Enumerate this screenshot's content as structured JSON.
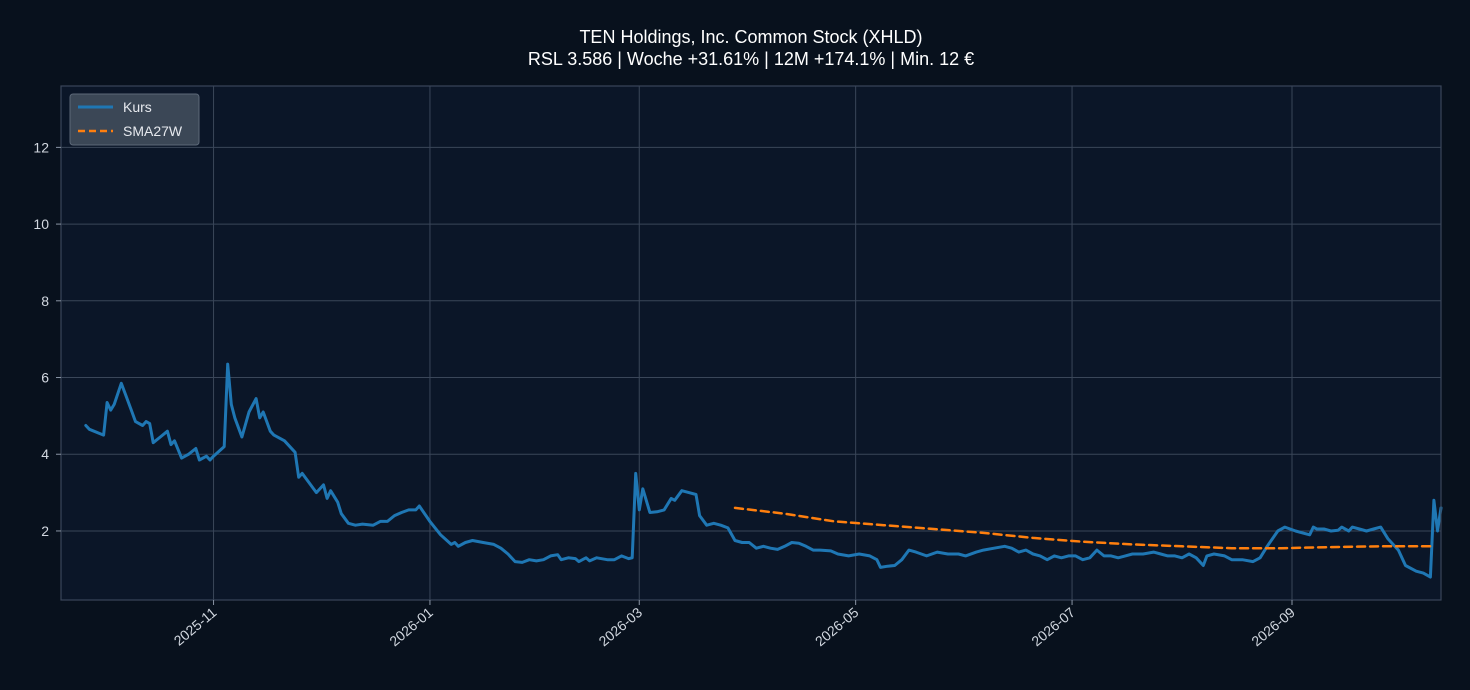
{
  "chart_data": {
    "type": "line",
    "title": "TEN Holdings, Inc. Common Stock (XHLD)",
    "subtitle": "RSL 3.586 | Woche +31.61% | 12M +174.1% | Min. 12 €",
    "xlabel": "",
    "ylabel": "",
    "xlim": [
      "2025-09-19",
      "2026-10-13"
    ],
    "ylim": [
      0.2,
      13.6
    ],
    "x_ticks": [
      "2025-11-01",
      "2026-01-01",
      "2026-03-01",
      "2026-05-01",
      "2026-07-01",
      "2026-09-01"
    ],
    "x_tick_labels": [
      "2025-11",
      "2026-01",
      "2026-03",
      "2026-05",
      "2026-07",
      "2026-09"
    ],
    "y_ticks": [
      2,
      4,
      6,
      8,
      10,
      12
    ],
    "y_tick_labels": [
      "2",
      "4",
      "6",
      "8",
      "10",
      "12"
    ],
    "grid": true,
    "legend_position": "top-left",
    "legend": [
      "Kurs",
      "SMA27W"
    ],
    "colors": {
      "Kurs": "#1f77b4",
      "SMA27W": "#ff7f0e",
      "background": "#08111d",
      "axes": "#0b1628",
      "grid": "#3a4659"
    },
    "series": [
      {
        "name": "Kurs",
        "style": "solid",
        "points": [
          [
            "2025-09-26",
            4.75
          ],
          [
            "2025-09-27",
            4.65
          ],
          [
            "2025-10-01",
            4.5
          ],
          [
            "2025-10-02",
            5.35
          ],
          [
            "2025-10-03",
            5.15
          ],
          [
            "2025-10-04",
            5.3
          ],
          [
            "2025-10-06",
            5.85
          ],
          [
            "2025-10-07",
            5.6
          ],
          [
            "2025-10-09",
            5.1
          ],
          [
            "2025-10-10",
            4.85
          ],
          [
            "2025-10-12",
            4.75
          ],
          [
            "2025-10-13",
            4.85
          ],
          [
            "2025-10-14",
            4.8
          ],
          [
            "2025-10-15",
            4.3
          ],
          [
            "2025-10-17",
            4.45
          ],
          [
            "2025-10-19",
            4.6
          ],
          [
            "2025-10-20",
            4.25
          ],
          [
            "2025-10-21",
            4.35
          ],
          [
            "2025-10-23",
            3.9
          ],
          [
            "2025-10-25",
            4.0
          ],
          [
            "2025-10-27",
            4.15
          ],
          [
            "2025-10-28",
            3.85
          ],
          [
            "2025-10-30",
            3.95
          ],
          [
            "2025-10-31",
            3.85
          ],
          [
            "2025-11-01",
            3.95
          ],
          [
            "2025-11-04",
            4.2
          ],
          [
            "2025-11-05",
            6.35
          ],
          [
            "2025-11-06",
            5.3
          ],
          [
            "2025-11-07",
            4.95
          ],
          [
            "2025-11-09",
            4.45
          ],
          [
            "2025-11-11",
            5.1
          ],
          [
            "2025-11-13",
            5.45
          ],
          [
            "2025-11-14",
            4.95
          ],
          [
            "2025-11-15",
            5.1
          ],
          [
            "2025-11-17",
            4.6
          ],
          [
            "2025-11-18",
            4.5
          ],
          [
            "2025-11-21",
            4.35
          ],
          [
            "2025-11-24",
            4.05
          ],
          [
            "2025-11-25",
            3.4
          ],
          [
            "2025-11-26",
            3.5
          ],
          [
            "2025-11-28",
            3.25
          ],
          [
            "2025-11-30",
            3.0
          ],
          [
            "2025-12-02",
            3.2
          ],
          [
            "2025-12-03",
            2.85
          ],
          [
            "2025-12-04",
            3.05
          ],
          [
            "2025-12-06",
            2.75
          ],
          [
            "2025-12-07",
            2.45
          ],
          [
            "2025-12-09",
            2.2
          ],
          [
            "2025-12-11",
            2.15
          ],
          [
            "2025-12-13",
            2.18
          ],
          [
            "2025-12-16",
            2.15
          ],
          [
            "2025-12-18",
            2.25
          ],
          [
            "2025-12-20",
            2.25
          ],
          [
            "2025-12-22",
            2.4
          ],
          [
            "2025-12-24",
            2.48
          ],
          [
            "2025-12-26",
            2.55
          ],
          [
            "2025-12-28",
            2.55
          ],
          [
            "2025-12-29",
            2.65
          ],
          [
            "2026-01-01",
            2.25
          ],
          [
            "2026-01-04",
            1.9
          ],
          [
            "2026-01-07",
            1.65
          ],
          [
            "2026-01-08",
            1.7
          ],
          [
            "2026-01-09",
            1.6
          ],
          [
            "2026-01-11",
            1.7
          ],
          [
            "2026-01-13",
            1.75
          ],
          [
            "2026-01-16",
            1.7
          ],
          [
            "2026-01-19",
            1.65
          ],
          [
            "2026-01-21",
            1.55
          ],
          [
            "2026-01-23",
            1.4
          ],
          [
            "2026-01-25",
            1.2
          ],
          [
            "2026-01-27",
            1.18
          ],
          [
            "2026-01-29",
            1.25
          ],
          [
            "2026-01-31",
            1.22
          ],
          [
            "2026-02-02",
            1.25
          ],
          [
            "2026-02-04",
            1.35
          ],
          [
            "2026-02-06",
            1.38
          ],
          [
            "2026-02-07",
            1.25
          ],
          [
            "2026-02-09",
            1.3
          ],
          [
            "2026-02-11",
            1.28
          ],
          [
            "2026-02-12",
            1.2
          ],
          [
            "2026-02-14",
            1.3
          ],
          [
            "2026-02-15",
            1.22
          ],
          [
            "2026-02-17",
            1.3
          ],
          [
            "2026-02-20",
            1.25
          ],
          [
            "2026-02-22",
            1.25
          ],
          [
            "2026-02-24",
            1.35
          ],
          [
            "2026-02-26",
            1.28
          ],
          [
            "2026-02-27",
            1.3
          ],
          [
            "2026-02-28",
            3.5
          ],
          [
            "2026-03-01",
            2.55
          ],
          [
            "2026-03-02",
            3.1
          ],
          [
            "2026-03-04",
            2.48
          ],
          [
            "2026-03-06",
            2.5
          ],
          [
            "2026-03-08",
            2.55
          ],
          [
            "2026-03-10",
            2.85
          ],
          [
            "2026-03-11",
            2.8
          ],
          [
            "2026-03-13",
            3.05
          ],
          [
            "2026-03-15",
            3.0
          ],
          [
            "2026-03-17",
            2.95
          ],
          [
            "2026-03-18",
            2.4
          ],
          [
            "2026-03-20",
            2.15
          ],
          [
            "2026-03-22",
            2.2
          ],
          [
            "2026-03-24",
            2.15
          ],
          [
            "2026-03-26",
            2.08
          ],
          [
            "2026-03-28",
            1.75
          ],
          [
            "2026-03-30",
            1.7
          ],
          [
            "2026-04-01",
            1.7
          ],
          [
            "2026-04-03",
            1.55
          ],
          [
            "2026-04-05",
            1.6
          ],
          [
            "2026-04-07",
            1.55
          ],
          [
            "2026-04-09",
            1.52
          ],
          [
            "2026-04-11",
            1.6
          ],
          [
            "2026-04-13",
            1.7
          ],
          [
            "2026-04-15",
            1.68
          ],
          [
            "2026-04-17",
            1.6
          ],
          [
            "2026-04-19",
            1.5
          ],
          [
            "2026-04-21",
            1.5
          ],
          [
            "2026-04-24",
            1.48
          ],
          [
            "2026-04-26",
            1.4
          ],
          [
            "2026-04-29",
            1.35
          ],
          [
            "2026-05-02",
            1.4
          ],
          [
            "2026-05-05",
            1.35
          ],
          [
            "2026-05-07",
            1.25
          ],
          [
            "2026-05-08",
            1.05
          ],
          [
            "2026-05-10",
            1.08
          ],
          [
            "2026-05-12",
            1.1
          ],
          [
            "2026-05-14",
            1.25
          ],
          [
            "2026-05-16",
            1.5
          ],
          [
            "2026-05-18",
            1.45
          ],
          [
            "2026-05-21",
            1.35
          ],
          [
            "2026-05-24",
            1.45
          ],
          [
            "2026-05-27",
            1.4
          ],
          [
            "2026-05-30",
            1.4
          ],
          [
            "2026-06-01",
            1.35
          ],
          [
            "2026-06-04",
            1.45
          ],
          [
            "2026-06-06",
            1.5
          ],
          [
            "2026-06-09",
            1.55
          ],
          [
            "2026-06-12",
            1.6
          ],
          [
            "2026-06-14",
            1.55
          ],
          [
            "2026-06-16",
            1.45
          ],
          [
            "2026-06-18",
            1.5
          ],
          [
            "2026-06-20",
            1.4
          ],
          [
            "2026-06-22",
            1.35
          ],
          [
            "2026-06-24",
            1.25
          ],
          [
            "2026-06-26",
            1.35
          ],
          [
            "2026-06-28",
            1.3
          ],
          [
            "2026-06-30",
            1.35
          ],
          [
            "2026-07-02",
            1.35
          ],
          [
            "2026-07-04",
            1.25
          ],
          [
            "2026-07-06",
            1.3
          ],
          [
            "2026-07-08",
            1.5
          ],
          [
            "2026-07-10",
            1.35
          ],
          [
            "2026-07-12",
            1.35
          ],
          [
            "2026-07-14",
            1.3
          ],
          [
            "2026-07-16",
            1.35
          ],
          [
            "2026-07-18",
            1.4
          ],
          [
            "2026-07-21",
            1.4
          ],
          [
            "2026-07-24",
            1.45
          ],
          [
            "2026-07-26",
            1.4
          ],
          [
            "2026-07-28",
            1.35
          ],
          [
            "2026-07-30",
            1.35
          ],
          [
            "2026-08-01",
            1.3
          ],
          [
            "2026-08-03",
            1.4
          ],
          [
            "2026-08-05",
            1.3
          ],
          [
            "2026-08-07",
            1.1
          ],
          [
            "2026-08-08",
            1.35
          ],
          [
            "2026-08-10",
            1.4
          ],
          [
            "2026-08-13",
            1.35
          ],
          [
            "2026-08-15",
            1.25
          ],
          [
            "2026-08-18",
            1.25
          ],
          [
            "2026-08-21",
            1.2
          ],
          [
            "2026-08-23",
            1.3
          ],
          [
            "2026-08-25",
            1.6
          ],
          [
            "2026-08-28",
            2.0
          ],
          [
            "2026-08-30",
            2.1
          ],
          [
            "2026-09-02",
            2.0
          ],
          [
            "2026-09-04",
            1.95
          ],
          [
            "2026-09-06",
            1.9
          ],
          [
            "2026-09-07",
            2.1
          ],
          [
            "2026-09-08",
            2.05
          ],
          [
            "2026-09-10",
            2.05
          ],
          [
            "2026-09-12",
            2.0
          ],
          [
            "2026-09-14",
            2.02
          ],
          [
            "2026-09-15",
            2.1
          ],
          [
            "2026-09-17",
            2.0
          ],
          [
            "2026-09-18",
            2.1
          ],
          [
            "2026-09-20",
            2.05
          ],
          [
            "2026-09-22",
            2.0
          ],
          [
            "2026-09-24",
            2.05
          ],
          [
            "2026-09-26",
            2.1
          ],
          [
            "2026-09-28",
            1.8
          ],
          [
            "2026-10-01",
            1.5
          ],
          [
            "2026-10-03",
            1.1
          ],
          [
            "2026-10-06",
            0.95
          ],
          [
            "2026-10-08",
            0.9
          ],
          [
            "2026-10-10",
            0.8
          ],
          [
            "2026-10-11",
            2.8
          ],
          [
            "2026-10-12",
            2.0
          ],
          [
            "2026-10-13",
            2.6
          ]
        ]
      },
      {
        "name": "SMA27W",
        "style": "dashed",
        "points": [
          [
            "2026-03-28",
            2.6
          ],
          [
            "2026-04-11",
            2.45
          ],
          [
            "2026-04-25",
            2.25
          ],
          [
            "2026-05-09",
            2.15
          ],
          [
            "2026-05-23",
            2.05
          ],
          [
            "2026-06-06",
            1.95
          ],
          [
            "2026-06-20",
            1.82
          ],
          [
            "2026-07-04",
            1.72
          ],
          [
            "2026-07-18",
            1.65
          ],
          [
            "2026-08-01",
            1.6
          ],
          [
            "2026-08-15",
            1.55
          ],
          [
            "2026-08-29",
            1.55
          ],
          [
            "2026-09-12",
            1.58
          ],
          [
            "2026-09-26",
            1.6
          ],
          [
            "2026-10-10",
            1.6
          ]
        ]
      }
    ]
  }
}
